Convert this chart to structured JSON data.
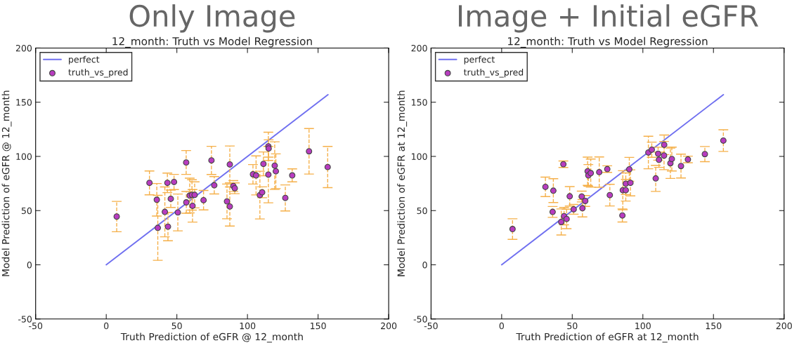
{
  "chart_data": [
    {
      "type": "scatter",
      "title": "Only Image",
      "subtitle": "12_month: Truth vs Model Regression",
      "xlabel": "Truth Prediction of eGFR @ 12_month",
      "ylabel": "Model Prediction of eGFR @ 12_month",
      "xlim": [
        -50,
        200
      ],
      "ylim": [
        -50,
        200
      ],
      "xticks": [
        -50,
        0,
        50,
        100,
        150,
        200
      ],
      "yticks": [
        -50,
        0,
        50,
        100,
        150,
        200
      ],
      "grid": false,
      "legend": "top left",
      "series": [
        {
          "name": "perfect",
          "type": "line",
          "color": "#7070f0",
          "marker": "none",
          "x": [
            0,
            157
          ],
          "values": [
            0,
            157
          ]
        },
        {
          "name": "truth_vs_pred",
          "color": "#b83cc0",
          "marker": "circle",
          "x": [
            7.4,
            30.6,
            35.8,
            36.5,
            41.5,
            43.3,
            43.7,
            45.7,
            48.0,
            50.7,
            56.6,
            56.7,
            59.1,
            60.7,
            62.6,
            61.1,
            68.9,
            74.5,
            76.5,
            85.5,
            87.5,
            87.5,
            90.0,
            91.0,
            103.9,
            106.1,
            108.8,
            110.4,
            111.3,
            114.8,
            115.0,
            114.8,
            119.3,
            120.1,
            126.8,
            131.7,
            143.6,
            156.8
          ],
          "values": [
            44.5,
            75.6,
            60.0,
            34.1,
            48.8,
            75.6,
            35.2,
            60.9,
            76.4,
            48.3,
            94.4,
            57.6,
            63.9,
            64.5,
            64.5,
            54.4,
            59.6,
            96.3,
            73.4,
            58.5,
            53.8,
            92.6,
            72.7,
            70.6,
            83.5,
            82.5,
            64.3,
            66.9,
            93.1,
            109.3,
            107.3,
            83.2,
            91.5,
            86.3,
            61.7,
            82.5,
            104.7,
            90.2
          ],
          "errors": [
            14,
            11,
            15,
            30,
            23,
            9,
            13,
            8,
            7,
            17,
            11,
            10,
            16,
            14,
            12,
            15,
            9,
            13,
            8,
            16,
            18,
            17,
            5,
            5,
            9,
            18,
            22,
            5,
            11,
            13,
            8,
            26,
            22,
            16,
            12,
            6,
            21,
            19
          ]
        }
      ]
    },
    {
      "type": "scatter",
      "title": "Image + Initial eGFR",
      "subtitle": "12_month: Truth vs Model Regression",
      "xlabel": "Truth Prediction of eGFR at 12_month",
      "ylabel": "Model Prediction of eGFR at 12_month",
      "xlim": [
        -50,
        200
      ],
      "ylim": [
        -50,
        200
      ],
      "xticks": [
        -50,
        0,
        50,
        100,
        150,
        200
      ],
      "yticks": [
        -50,
        0,
        50,
        100,
        150,
        200
      ],
      "grid": false,
      "legend": "top left",
      "series": [
        {
          "name": "perfect",
          "type": "line",
          "color": "#7070f0",
          "marker": "none",
          "x": [
            0,
            157
          ],
          "values": [
            0,
            157
          ]
        },
        {
          "name": "truth_vs_pred",
          "color": "#b83cc0",
          "marker": "circle",
          "x": [
            7.7,
            31.0,
            36.6,
            36.1,
            43.7,
            42.2,
            44.2,
            46.0,
            48.2,
            51.0,
            56.7,
            59.2,
            57.2,
            60.9,
            61.4,
            63.1,
            69.1,
            74.8,
            76.6,
            85.5,
            85.8,
            87.9,
            87.9,
            90.4,
            91.2,
            103.9,
            106.3,
            109.1,
            110.8,
            111.4,
            115.0,
            115.1,
            119.5,
            120.5,
            127.0,
            131.9,
            143.9,
            157.0
          ],
          "values": [
            33.0,
            71.9,
            68.4,
            48.8,
            92.8,
            39.5,
            44.9,
            42.3,
            63.2,
            51.2,
            63.0,
            58.9,
            52.2,
            86.3,
            82.5,
            84.6,
            85.5,
            88.3,
            64.3,
            45.5,
            68.8,
            68.8,
            74.8,
            88.1,
            75.6,
            103.6,
            106.2,
            79.7,
            102.5,
            96.9,
            100.8,
            110.7,
            93.7,
            97.6,
            91.1,
            97.2,
            102.1,
            114.6
          ],
          "errors": [
            9.5,
            9,
            11,
            5,
            3,
            12,
            8,
            9,
            9,
            4.5,
            5,
            5,
            8,
            13,
            10,
            13,
            14,
            3,
            10,
            6,
            18,
            10,
            10,
            11,
            12,
            15,
            7,
            12,
            6,
            7,
            13,
            9,
            14,
            11,
            11,
            3,
            7,
            10
          ]
        }
      ]
    }
  ]
}
